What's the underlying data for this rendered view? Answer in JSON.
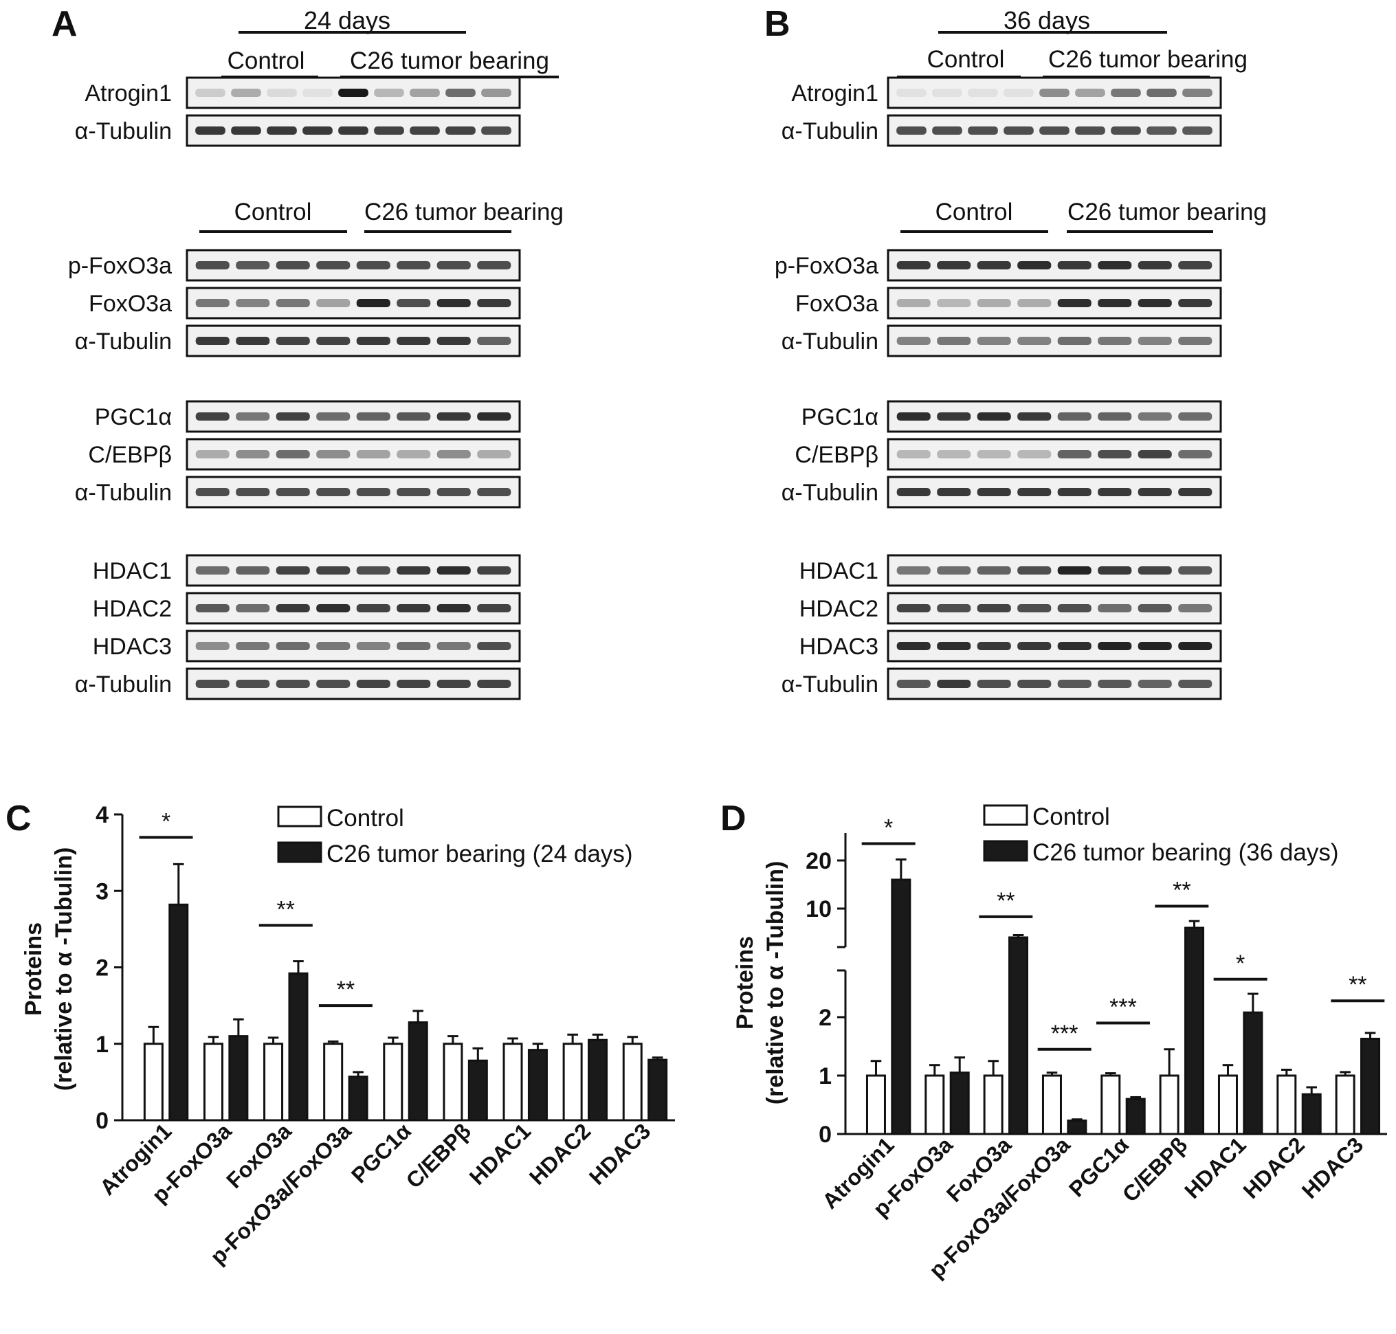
{
  "panels": {
    "A": {
      "letter": "A",
      "timepoint": "24 days",
      "groups": [
        "Control",
        "C26 tumor bearing"
      ],
      "blocks": [
        {
          "lanes": 9,
          "header": false,
          "rows": [
            {
              "label": "Atrogin1",
              "intensities": [
                0.15,
                0.3,
                0.08,
                0.05,
                1.0,
                0.25,
                0.35,
                0.6,
                0.4
              ]
            },
            {
              "label": "α-Tubulin",
              "intensities": [
                0.85,
                0.85,
                0.85,
                0.85,
                0.85,
                0.8,
                0.8,
                0.8,
                0.75
              ]
            }
          ]
        },
        {
          "lanes": 8,
          "header": true,
          "rows": [
            {
              "label": "p-FoxO3a",
              "intensities": [
                0.75,
                0.7,
                0.75,
                0.75,
                0.75,
                0.75,
                0.75,
                0.75
              ]
            },
            {
              "label": "FoxO3a",
              "intensities": [
                0.55,
                0.5,
                0.55,
                0.35,
                0.95,
                0.75,
                0.9,
                0.85
              ]
            },
            {
              "label": "α-Tubulin",
              "intensities": [
                0.85,
                0.85,
                0.8,
                0.8,
                0.85,
                0.85,
                0.85,
                0.65
              ]
            }
          ]
        },
        {
          "lanes": 8,
          "header": false,
          "rows": [
            {
              "label": "PGC1α",
              "intensities": [
                0.8,
                0.55,
                0.8,
                0.6,
                0.65,
                0.7,
                0.85,
                0.9
              ]
            },
            {
              "label": "C/EBPβ",
              "intensities": [
                0.3,
                0.45,
                0.6,
                0.45,
                0.35,
                0.3,
                0.45,
                0.3
              ]
            },
            {
              "label": "α-Tubulin",
              "intensities": [
                0.75,
                0.75,
                0.75,
                0.75,
                0.75,
                0.75,
                0.75,
                0.75
              ]
            }
          ]
        },
        {
          "lanes": 8,
          "header": false,
          "rows": [
            {
              "label": "HDAC1",
              "intensities": [
                0.6,
                0.65,
                0.8,
                0.8,
                0.75,
                0.85,
                0.9,
                0.8
              ]
            },
            {
              "label": "HDAC2",
              "intensities": [
                0.7,
                0.6,
                0.85,
                0.9,
                0.8,
                0.85,
                0.9,
                0.8
              ]
            },
            {
              "label": "HDAC3",
              "intensities": [
                0.45,
                0.55,
                0.6,
                0.55,
                0.5,
                0.6,
                0.55,
                0.75
              ]
            },
            {
              "label": "α-Tubulin",
              "intensities": [
                0.75,
                0.75,
                0.75,
                0.75,
                0.8,
                0.8,
                0.8,
                0.8
              ]
            }
          ]
        }
      ]
    },
    "B": {
      "letter": "B",
      "timepoint": "36 days",
      "groups": [
        "Control",
        "C26 tumor bearing"
      ],
      "blocks": [
        {
          "lanes": 9,
          "header": false,
          "rows": [
            {
              "label": "Atrogin1",
              "intensities": [
                0.05,
                0.05,
                0.05,
                0.05,
                0.45,
                0.35,
                0.55,
                0.6,
                0.5
              ]
            },
            {
              "label": "α-Tubulin",
              "intensities": [
                0.75,
                0.75,
                0.75,
                0.75,
                0.75,
                0.75,
                0.75,
                0.7,
                0.7
              ]
            }
          ]
        },
        {
          "lanes": 8,
          "header": true,
          "rows": [
            {
              "label": "p-FoxO3a",
              "intensities": [
                0.85,
                0.85,
                0.85,
                0.9,
                0.85,
                0.9,
                0.85,
                0.8
              ]
            },
            {
              "label": "FoxO3a",
              "intensities": [
                0.3,
                0.25,
                0.3,
                0.3,
                0.9,
                0.9,
                0.9,
                0.85
              ]
            },
            {
              "label": "α-Tubulin",
              "intensities": [
                0.5,
                0.55,
                0.5,
                0.5,
                0.6,
                0.55,
                0.5,
                0.55
              ]
            }
          ]
        },
        {
          "lanes": 8,
          "header": false,
          "rows": [
            {
              "label": "PGC1α",
              "intensities": [
                0.9,
                0.85,
                0.9,
                0.85,
                0.65,
                0.65,
                0.55,
                0.6
              ]
            },
            {
              "label": "C/EBPβ",
              "intensities": [
                0.25,
                0.25,
                0.25,
                0.25,
                0.65,
                0.75,
                0.8,
                0.6
              ]
            },
            {
              "label": "α-Tubulin",
              "intensities": [
                0.85,
                0.85,
                0.85,
                0.85,
                0.85,
                0.85,
                0.85,
                0.85
              ]
            }
          ]
        },
        {
          "lanes": 8,
          "header": false,
          "rows": [
            {
              "label": "HDAC1",
              "intensities": [
                0.55,
                0.6,
                0.65,
                0.75,
                0.95,
                0.85,
                0.8,
                0.7
              ]
            },
            {
              "label": "HDAC2",
              "intensities": [
                0.8,
                0.75,
                0.8,
                0.75,
                0.75,
                0.6,
                0.7,
                0.55
              ]
            },
            {
              "label": "HDAC3",
              "intensities": [
                0.9,
                0.9,
                0.85,
                0.85,
                0.9,
                0.95,
                0.95,
                0.95
              ]
            },
            {
              "label": "α-Tubulin",
              "intensities": [
                0.7,
                0.85,
                0.75,
                0.75,
                0.7,
                0.7,
                0.65,
                0.7
              ]
            }
          ]
        }
      ]
    }
  },
  "chart_data": [
    {
      "panel": "C",
      "type": "bar",
      "ylabel": "Proteins",
      "ylabel2": "(relative to α -Tubulin)",
      "ylim": [
        0,
        4
      ],
      "yticks": [
        "0",
        "1",
        "2",
        "3",
        "4"
      ],
      "categories": [
        "Atrogin1",
        "p-FoxO3a",
        "FoxO3a",
        "p-FoxO3a/FoxO3a",
        "PGC1α",
        "C/EBPβ",
        "HDAC1",
        "HDAC2",
        "HDAC3"
      ],
      "series": [
        {
          "name": "Control",
          "values": [
            1.0,
            1.0,
            1.0,
            1.0,
            1.0,
            1.0,
            1.0,
            1.0,
            1.0
          ],
          "errors": [
            0.22,
            0.09,
            0.08,
            0.03,
            0.08,
            0.1,
            0.07,
            0.12,
            0.09
          ],
          "color": "#ffffff"
        },
        {
          "name": "C26 tumor bearing (24 days)",
          "values": [
            2.82,
            1.1,
            1.92,
            0.57,
            1.28,
            0.78,
            0.92,
            1.05,
            0.79
          ],
          "errors": [
            0.53,
            0.22,
            0.16,
            0.06,
            0.15,
            0.16,
            0.08,
            0.07,
            0.03
          ],
          "color": "#1a1a1a"
        }
      ],
      "significance": [
        {
          "category": "Atrogin1",
          "label": "*",
          "y": 3.7
        },
        {
          "category": "FoxO3a",
          "label": "**",
          "y": 2.55
        },
        {
          "category": "p-FoxO3a/FoxO3a",
          "label": "**",
          "y": 1.5
        }
      ],
      "legend": "top-right"
    },
    {
      "panel": "D",
      "type": "bar",
      "ylabel": "Proteins",
      "ylabel2": "(relative to α -Tubulin)",
      "broken_axis": {
        "lower": [
          0,
          2.8
        ],
        "upper": [
          0,
          25
        ]
      },
      "yticks_lower": [
        "0",
        "1",
        "2"
      ],
      "yticks_upper": [
        "10",
        "20"
      ],
      "categories": [
        "Atrogin1",
        "p-FoxO3a",
        "FoxO3a",
        "p-FoxO3a/FoxO3a",
        "PGC1α",
        "C/EBPβ",
        "HDAC1",
        "HDAC2",
        "HDAC3"
      ],
      "series": [
        {
          "name": "Control",
          "values": [
            1.0,
            1.0,
            1.0,
            1.0,
            1.0,
            1.0,
            1.0,
            1.0,
            1.0
          ],
          "errors": [
            0.25,
            0.18,
            0.25,
            0.05,
            0.04,
            0.45,
            0.18,
            0.1,
            0.06
          ],
          "color": "#ffffff"
        },
        {
          "name": "C26 tumor bearing (36 days)",
          "values": [
            16.0,
            1.05,
            4.0,
            0.23,
            0.6,
            6.0,
            2.08,
            0.68,
            1.63
          ],
          "errors": [
            4.2,
            0.26,
            0.5,
            0.02,
            0.03,
            1.4,
            0.32,
            0.12,
            0.1
          ],
          "color": "#1a1a1a"
        }
      ],
      "significance": [
        {
          "category": "Atrogin1",
          "label": "*",
          "y": 23.5
        },
        {
          "category": "FoxO3a",
          "label": "**",
          "y": 8.3
        },
        {
          "category": "p-FoxO3a/FoxO3a",
          "label": "***",
          "y": 1.45
        },
        {
          "category": "PGC1α",
          "label": "***",
          "y": 1.9
        },
        {
          "category": "C/EBPβ",
          "label": "**",
          "y": 10.5
        },
        {
          "category": "HDAC1",
          "label": "*",
          "y": 2.65
        },
        {
          "category": "HDAC3",
          "label": "**",
          "y": 2.28
        }
      ],
      "legend": "top-right"
    }
  ]
}
